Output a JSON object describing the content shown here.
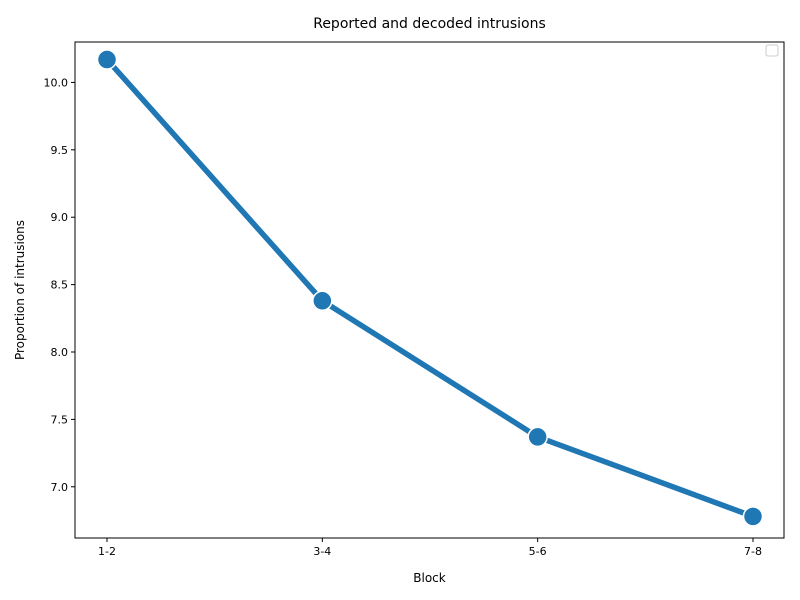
{
  "chart_data": {
    "type": "line",
    "title": "Reported and decoded intrusions",
    "xlabel": "Block",
    "ylabel": "Proportion of intrusions",
    "categories": [
      "1-2",
      "3-4",
      "5-6",
      "7-8"
    ],
    "series": [
      {
        "values": [
          10.17,
          8.38,
          7.37,
          6.78
        ],
        "color": "#1f77b4"
      }
    ],
    "ylim": [
      6.62,
      10.3
    ],
    "yticks": [
      7.0,
      7.5,
      8.0,
      8.5,
      9.0,
      9.5,
      10.0
    ],
    "ytick_labels": [
      "7.0",
      "7.5",
      "8.0",
      "8.5",
      "9.0",
      "9.5",
      "10.0"
    ],
    "grid": false,
    "legend": "top-right",
    "legend_entries": []
  }
}
